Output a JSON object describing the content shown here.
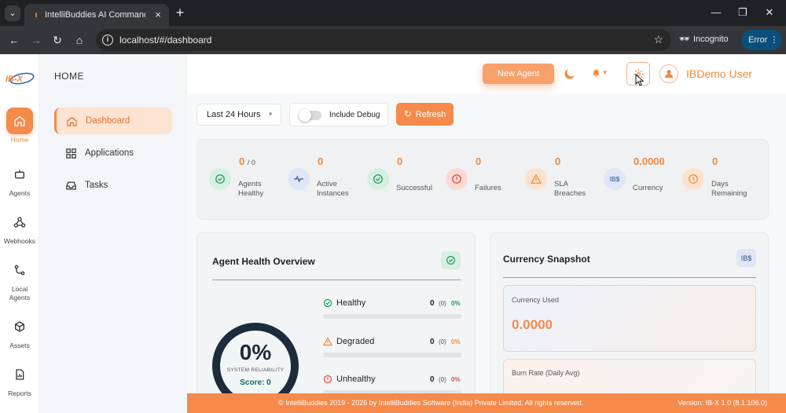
{
  "browser": {
    "tab_title": "IntelliBuddies AI Command Center",
    "url": "localhost/#/dashboard",
    "incognito_label": "Incognito",
    "error_label": "Error",
    "new_tab_symbol": "+",
    "close_symbol": "×"
  },
  "rail": {
    "logo_text": "IB-X",
    "items": [
      {
        "label": "Home",
        "icon": "home-icon",
        "active": true
      },
      {
        "label": "Agents",
        "icon": "robot-icon"
      },
      {
        "label": "Webhooks",
        "icon": "webhook-icon"
      },
      {
        "label": "Local Agents",
        "icon": "local-agent-icon"
      },
      {
        "label": "Assets",
        "icon": "cube-icon"
      },
      {
        "label": "Reports",
        "icon": "report-icon"
      }
    ]
  },
  "sidenav": {
    "title": "HOME",
    "items": [
      {
        "label": "Dashboard",
        "icon": "home-icon",
        "active": true
      },
      {
        "label": "Applications",
        "icon": "grid-icon"
      },
      {
        "label": "Tasks",
        "icon": "inbox-icon"
      }
    ]
  },
  "topbar": {
    "new_agent_label": "New Agent",
    "user_name": "IBDemo User"
  },
  "toolbar": {
    "time_range": "Last 24 Hours",
    "debug_label": "Include Debug",
    "refresh_label": "Refresh"
  },
  "stats": [
    {
      "value": "0",
      "suffix": "/ 0",
      "label": "Agents\nHealthy",
      "icon": "check-circle-icon"
    },
    {
      "value": "0",
      "label": "Active\nInstances",
      "icon": "pulse-icon"
    },
    {
      "value": "0",
      "label": "Successful",
      "icon": "check-circle-icon"
    },
    {
      "value": "0",
      "label": "Failures",
      "icon": "alert-circle-icon"
    },
    {
      "value": "0",
      "label": "SLA\nBreaches",
      "icon": "warning-icon"
    },
    {
      "value": "0.0000",
      "label": "Currency",
      "icon": "ib-currency-icon",
      "icon_text": "IB$"
    },
    {
      "value": "0",
      "label": "Days\nRemaining",
      "icon": "clock-icon"
    }
  ],
  "health": {
    "title": "Agent Health Overview",
    "percent": "0%",
    "subtitle": "SYSTEM RELIABILITY",
    "score": "Score: 0",
    "rows": [
      {
        "label": "Healthy",
        "count": "0",
        "paren": "(0)",
        "pct": "0%",
        "color": "#1e9a5a"
      },
      {
        "label": "Degraded",
        "count": "0",
        "paren": "(0)",
        "pct": "0%",
        "color": "#f08a3c"
      },
      {
        "label": "Unhealthy",
        "count": "0",
        "paren": "(0)",
        "pct": "0%",
        "color": "#e04b3f"
      }
    ]
  },
  "currency": {
    "title": "Currency Snapshot",
    "badge": "IB$",
    "used_label": "Currency Used",
    "used_value": "0.0000",
    "burn_label": "Burn Rate (Daily Avg)"
  },
  "footer": {
    "copyright": "© IntelliBuddies 2019 - 2026 by IntelliBuddies Software (India) Private Limited. All rights reserved.",
    "version": "Version: IB-X 1.0 (8.1.106.0)"
  },
  "colors": {
    "accent": "#f58a4b",
    "dark_navy": "#1d2b3a",
    "success": "#1e9a5a",
    "danger": "#e04b3f"
  }
}
